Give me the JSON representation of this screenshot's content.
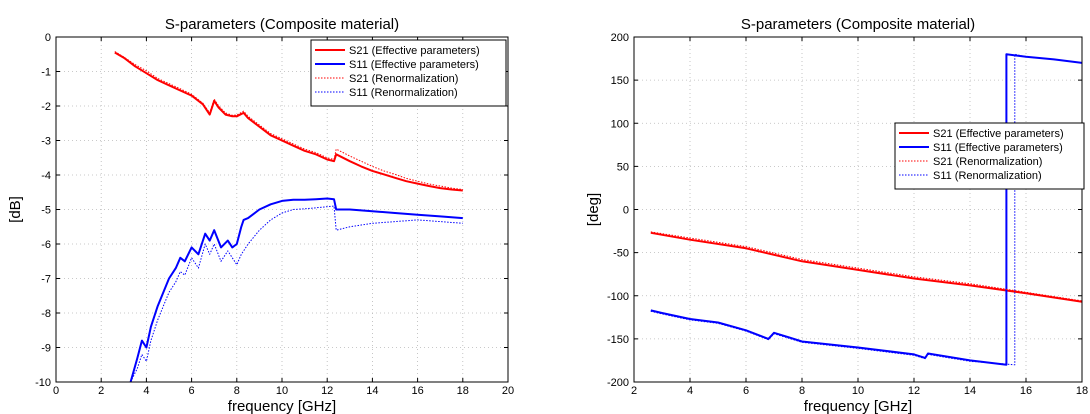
{
  "chart_data": [
    {
      "type": "line",
      "title": "S-parameters (Composite material)",
      "xlabel": "frequency [GHz]",
      "ylabel": "[dB]",
      "xlim": [
        0,
        20
      ],
      "ylim": [
        -10,
        0
      ],
      "xticks": [
        0,
        2,
        4,
        6,
        8,
        10,
        12,
        14,
        16,
        18,
        20
      ],
      "yticks": [
        0,
        -1,
        -2,
        -3,
        -4,
        -5,
        -6,
        -7,
        -8,
        -9,
        -10
      ],
      "grid": true,
      "legend_position": "top-right",
      "series": [
        {
          "name": "S21 (Effective parameters)",
          "color": "#ff0000",
          "style": "solid",
          "x": [
            2.6,
            3.0,
            3.5,
            4.0,
            4.5,
            5.0,
            5.5,
            6.0,
            6.5,
            6.8,
            7.0,
            7.2,
            7.5,
            7.8,
            8.0,
            8.3,
            8.5,
            9.0,
            9.5,
            10.0,
            10.5,
            11.0,
            11.5,
            12.0,
            12.3,
            12.4,
            13.0,
            13.5,
            14.0,
            14.5,
            15.0,
            15.5,
            16.0,
            16.5,
            17.0,
            17.5,
            18.0
          ],
          "y": [
            -0.45,
            -0.6,
            -0.85,
            -1.05,
            -1.25,
            -1.4,
            -1.55,
            -1.7,
            -1.95,
            -2.25,
            -1.85,
            -2.05,
            -2.25,
            -2.3,
            -2.3,
            -2.2,
            -2.35,
            -2.6,
            -2.85,
            -3.0,
            -3.15,
            -3.3,
            -3.4,
            -3.55,
            -3.6,
            -3.4,
            -3.6,
            -3.75,
            -3.88,
            -3.98,
            -4.08,
            -4.18,
            -4.25,
            -4.32,
            -4.38,
            -4.42,
            -4.45
          ]
        },
        {
          "name": "S11 (Effective parameters)",
          "color": "#0000ff",
          "style": "solid",
          "x": [
            3.3,
            3.6,
            3.8,
            4.0,
            4.2,
            4.5,
            5.0,
            5.3,
            5.5,
            5.7,
            6.0,
            6.3,
            6.6,
            6.8,
            7.0,
            7.3,
            7.6,
            7.8,
            8.0,
            8.2,
            8.3,
            8.5,
            9.0,
            9.5,
            10.0,
            10.5,
            11.0,
            11.5,
            12.0,
            12.3,
            12.4,
            13.0,
            14.0,
            15.0,
            16.0,
            17.0,
            18.0
          ],
          "y": [
            -10.0,
            -9.3,
            -8.8,
            -9.0,
            -8.4,
            -7.8,
            -7.0,
            -6.7,
            -6.4,
            -6.5,
            -6.1,
            -6.3,
            -5.7,
            -5.9,
            -5.6,
            -6.1,
            -5.9,
            -6.1,
            -6.0,
            -5.5,
            -5.3,
            -5.25,
            -5.0,
            -4.85,
            -4.75,
            -4.72,
            -4.72,
            -4.7,
            -4.68,
            -4.7,
            -5.0,
            -5.0,
            -5.05,
            -5.1,
            -5.15,
            -5.2,
            -5.25
          ]
        },
        {
          "name": "S21 (Renormalization)",
          "color": "#ff0000",
          "style": "dotted",
          "x": [
            2.6,
            3.0,
            3.5,
            4.0,
            4.5,
            5.0,
            5.5,
            6.0,
            6.5,
            6.8,
            7.0,
            7.2,
            7.5,
            7.8,
            8.0,
            8.3,
            8.5,
            9.0,
            9.5,
            10.0,
            10.5,
            11.0,
            11.5,
            12.0,
            12.3,
            12.4,
            13.0,
            13.5,
            14.0,
            14.5,
            15.0,
            15.5,
            16.0,
            16.5,
            17.0,
            17.5,
            18.0
          ],
          "y": [
            -0.42,
            -0.58,
            -0.8,
            -0.98,
            -1.2,
            -1.35,
            -1.5,
            -1.66,
            -1.92,
            -2.2,
            -1.8,
            -2.0,
            -2.2,
            -2.27,
            -2.26,
            -2.15,
            -2.3,
            -2.55,
            -2.8,
            -2.95,
            -3.1,
            -3.25,
            -3.35,
            -3.5,
            -3.55,
            -3.25,
            -3.45,
            -3.6,
            -3.75,
            -3.88,
            -3.98,
            -4.1,
            -4.18,
            -4.26,
            -4.32,
            -4.38,
            -4.42
          ]
        },
        {
          "name": "S11 (Renormalization)",
          "color": "#0000ff",
          "style": "dotted",
          "x": [
            3.3,
            3.6,
            3.8,
            4.0,
            4.2,
            4.5,
            5.0,
            5.3,
            5.5,
            5.7,
            6.0,
            6.3,
            6.6,
            6.8,
            7.0,
            7.3,
            7.6,
            7.8,
            8.0,
            8.2,
            8.3,
            8.5,
            9.0,
            9.5,
            10.0,
            10.5,
            11.0,
            11.5,
            12.0,
            12.3,
            12.4,
            13.0,
            14.0,
            15.0,
            16.0,
            17.0,
            18.0
          ],
          "y": [
            -10.0,
            -9.6,
            -9.2,
            -9.4,
            -8.8,
            -8.2,
            -7.4,
            -7.1,
            -6.8,
            -6.9,
            -6.4,
            -6.7,
            -6.0,
            -6.3,
            -6.0,
            -6.5,
            -6.2,
            -6.4,
            -6.6,
            -6.3,
            -6.2,
            -6.0,
            -5.6,
            -5.3,
            -5.1,
            -5.0,
            -4.98,
            -4.95,
            -4.92,
            -4.9,
            -5.6,
            -5.5,
            -5.4,
            -5.35,
            -5.3,
            -5.35,
            -5.4
          ]
        }
      ]
    },
    {
      "type": "line",
      "title": "S-parameters (Composite material)",
      "xlabel": "frequency [GHz]",
      "ylabel": "[deg]",
      "xlim": [
        2,
        18
      ],
      "ylim": [
        -200,
        200
      ],
      "xticks": [
        2,
        4,
        6,
        8,
        10,
        12,
        14,
        16,
        18
      ],
      "yticks": [
        200,
        150,
        100,
        50,
        0,
        -50,
        -100,
        -150,
        -200
      ],
      "grid": true,
      "legend_position": "right",
      "series": [
        {
          "name": "S21 (Effective parameters)",
          "color": "#ff0000",
          "style": "solid",
          "x": [
            2.6,
            4,
            6,
            8,
            10,
            12,
            14,
            16,
            18
          ],
          "y": [
            -27,
            -35,
            -45,
            -60,
            -70,
            -80,
            -88,
            -97,
            -107
          ]
        },
        {
          "name": "S11 (Effective parameters)",
          "color": "#0000ff",
          "style": "solid",
          "x": [
            2.6,
            3.0,
            4.0,
            5.0,
            6.0,
            6.8,
            7.0,
            7.5,
            8.0,
            10.0,
            12.0,
            12.4,
            12.5,
            14.0,
            15.3,
            15.3,
            16.0,
            17.0,
            18.0
          ],
          "y": [
            -117,
            -120,
            -127,
            -131,
            -140,
            -150,
            -143,
            -148,
            -153,
            -160,
            -168,
            -172,
            -167,
            -175,
            -180,
            180,
            177,
            174,
            170
          ]
        },
        {
          "name": "S21 (Renormalization)",
          "color": "#ff0000",
          "style": "dotted",
          "x": [
            2.6,
            4,
            6,
            8,
            10,
            12,
            14,
            16,
            18
          ],
          "y": [
            -26,
            -33,
            -43,
            -58,
            -68,
            -78,
            -86,
            -96,
            -106
          ]
        },
        {
          "name": "S11 (Renormalization)",
          "color": "#0000ff",
          "style": "dotted",
          "x": [
            2.6,
            3.0,
            4.0,
            5.0,
            6.0,
            6.8,
            7.0,
            7.5,
            8.0,
            10.0,
            12.0,
            12.4,
            12.5,
            14.0,
            15.6,
            15.6,
            16.0,
            17.0,
            18.0
          ],
          "y": [
            -118,
            -121,
            -128,
            -132,
            -141,
            -151,
            -144,
            -149,
            -154,
            -161,
            -169,
            -173,
            -168,
            -176,
            -180,
            180,
            177,
            174,
            170
          ]
        }
      ]
    }
  ]
}
